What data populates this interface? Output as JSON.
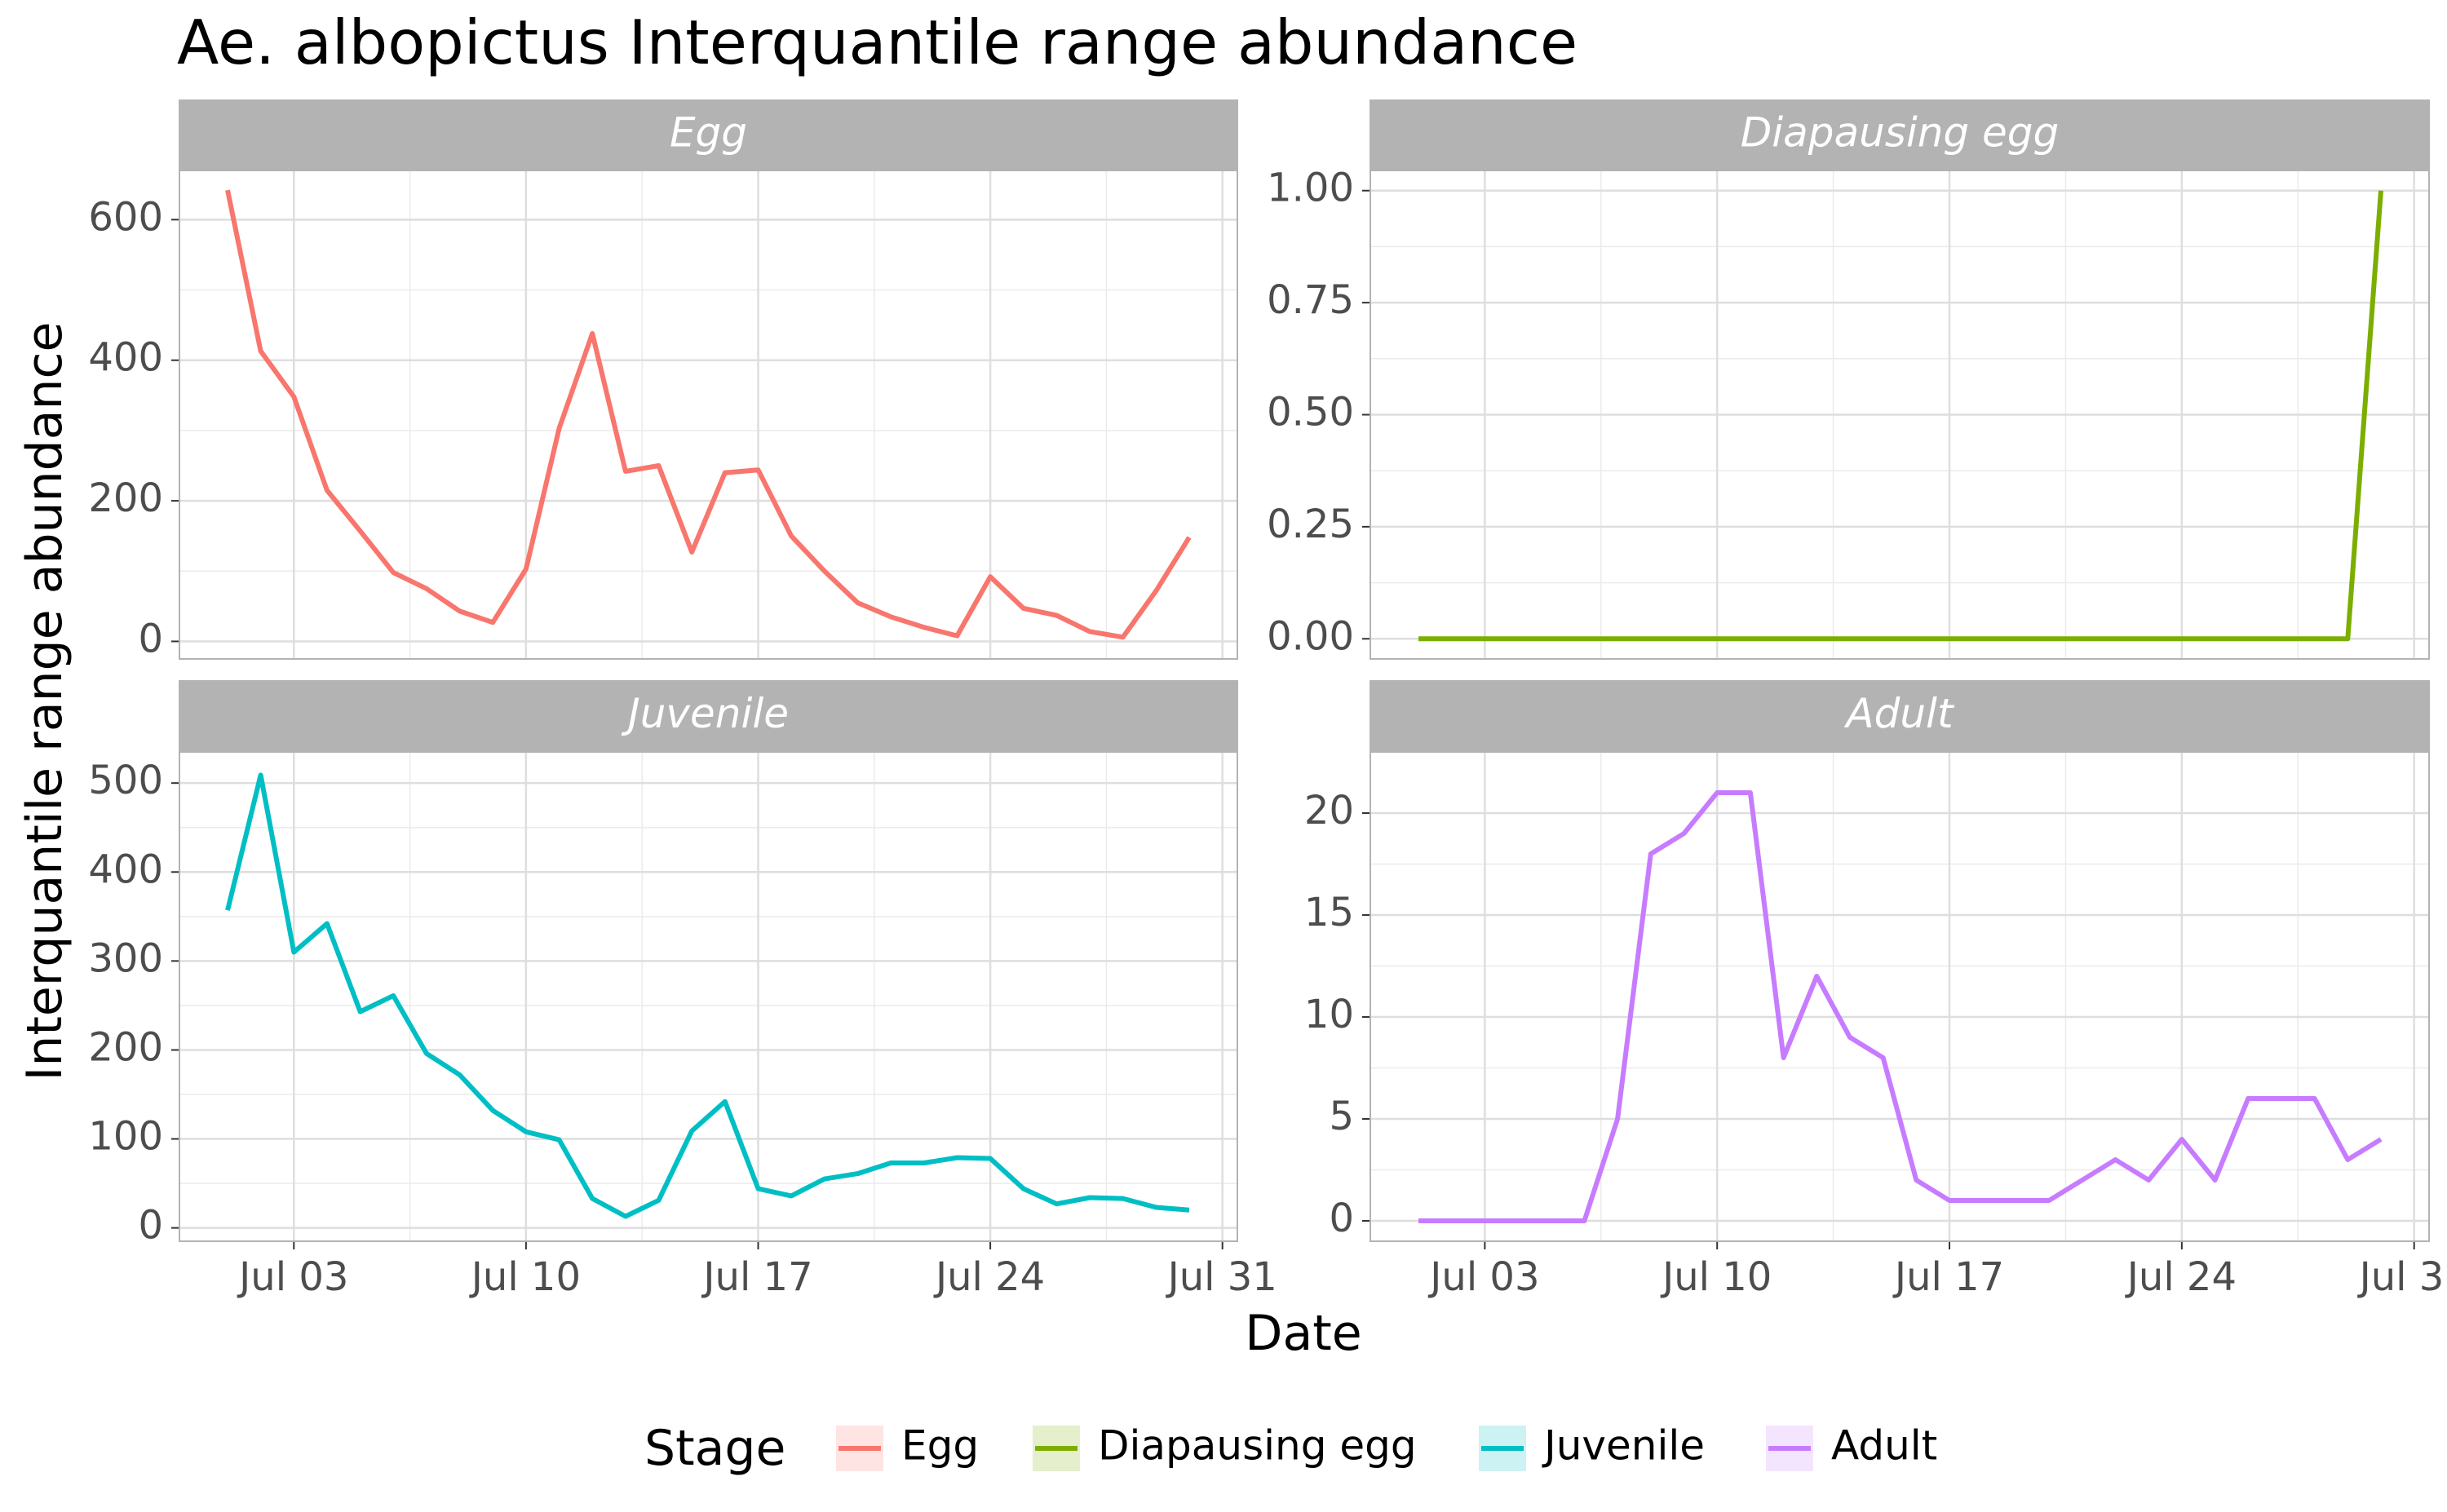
{
  "title": "Ae. albopictus Interquantile range abundance",
  "xlabel": "Date",
  "ylabel": "Interquantile range abundance",
  "legend": {
    "title": "Stage",
    "position": "bottom",
    "entries": [
      "Egg",
      "Diapausing egg",
      "Juvenile",
      "Adult"
    ]
  },
  "colors": {
    "Egg": "#F8766D",
    "Diapausing egg": "#7CAE00",
    "Juvenile": "#00BFC4",
    "Adult": "#C77CFF",
    "strip": "#b3b3b3",
    "grid": "#ebebeb",
    "border": "#b3b3b3"
  },
  "chart_data": {
    "type": "line",
    "facets": "2x2, free y scales, shared x",
    "grid": true,
    "x_ticks": [
      "Jul 03",
      "Jul 10",
      "Jul 17",
      "Jul 24",
      "Jul 31"
    ],
    "x_start_date": "Jul 01",
    "panels": [
      {
        "name": "Egg",
        "ylim": [
          -25,
          670
        ],
        "yticks": [
          0,
          200,
          400,
          600
        ],
        "ytick_labels": [
          "0",
          "200",
          "400",
          "600"
        ],
        "values": [
          642,
          413,
          348,
          215,
          157,
          98,
          75,
          43,
          27,
          103,
          303,
          438,
          242,
          250,
          127,
          240,
          244,
          150,
          100,
          55,
          35,
          20,
          8,
          92,
          47,
          37,
          14,
          6,
          72,
          148
        ]
      },
      {
        "name": "Diapausing egg",
        "ylim": [
          -0.045,
          1.045
        ],
        "yticks": [
          0,
          0.25,
          0.5,
          0.75,
          1
        ],
        "ytick_labels": [
          "0.00",
          "0.25",
          "0.50",
          "0.75",
          "1.00"
        ],
        "values": [
          0,
          0,
          0,
          0,
          0,
          0,
          0,
          0,
          0,
          0,
          0,
          0,
          0,
          0,
          0,
          0,
          0,
          0,
          0,
          0,
          0,
          0,
          0,
          0,
          0,
          0,
          0,
          0,
          0,
          1
        ]
      },
      {
        "name": "Juvenile",
        "ylim": [
          -15,
          535
        ],
        "yticks": [
          0,
          100,
          200,
          300,
          400,
          500
        ],
        "ytick_labels": [
          "0",
          "100",
          "200",
          "300",
          "400",
          "500"
        ],
        "values": [
          357,
          509,
          310,
          342,
          243,
          261,
          196,
          172,
          132,
          108,
          99,
          33,
          13,
          31,
          109,
          142,
          44,
          36,
          55,
          61,
          73,
          73,
          79,
          78,
          44,
          27,
          34,
          33,
          23,
          20
        ]
      },
      {
        "name": "Adult",
        "ylim": [
          -1,
          23
        ],
        "yticks": [
          0,
          5,
          10,
          15,
          20
        ],
        "ytick_labels": [
          "0",
          "5",
          "10",
          "15",
          "20"
        ],
        "values": [
          0,
          0,
          0,
          0,
          0,
          0,
          5,
          18,
          19,
          21,
          21,
          8,
          12,
          9,
          8,
          2,
          1,
          1,
          1,
          1,
          2,
          3,
          2,
          4,
          2,
          6,
          6,
          6,
          3,
          4
        ]
      }
    ]
  }
}
